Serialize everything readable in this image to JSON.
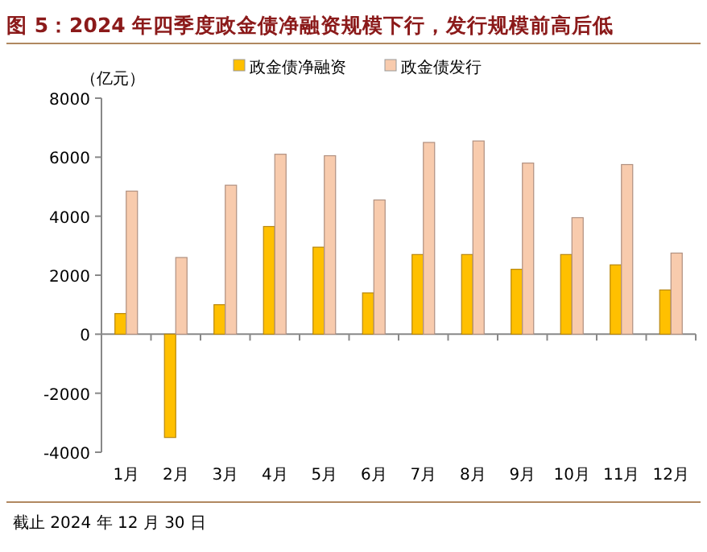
{
  "chart_data": {
    "type": "bar",
    "title": "图 5：2024 年四季度政金债净融资规模下行，发行规模前高后低",
    "ylabel": "（亿元）",
    "categories": [
      "1月",
      "2月",
      "3月",
      "4月",
      "5月",
      "6月",
      "7月",
      "8月",
      "9月",
      "10月",
      "11月",
      "12月"
    ],
    "series": [
      {
        "name": "政金债净融资",
        "color": "#ffc000",
        "values": [
          700,
          -3500,
          1000,
          3650,
          2950,
          1400,
          2700,
          2700,
          2200,
          2700,
          2350,
          1500
        ]
      },
      {
        "name": "政金债发行",
        "color": "#f8cbad",
        "values": [
          4850,
          2600,
          5050,
          6100,
          6050,
          4550,
          6500,
          6550,
          5800,
          3950,
          5750,
          2750
        ]
      }
    ],
    "ylim": [
      -4000,
      8000
    ],
    "yticks": [
      -4000,
      -2000,
      0,
      2000,
      4000,
      6000,
      8000
    ],
    "legend": "top",
    "annotations": [
      "截止 2024 年 12 月 30 日"
    ]
  }
}
